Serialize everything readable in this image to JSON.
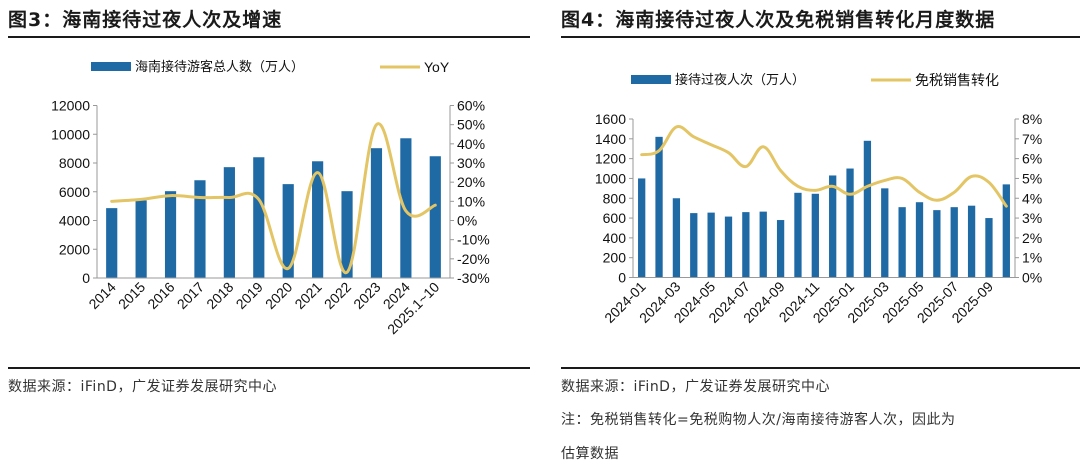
{
  "figures": [
    {
      "title": "图3：海南接待过夜人次及增速",
      "source": "数据来源：iFinD，广发证券发展研究中心"
    },
    {
      "title": "图4：海南接待过夜人次及免税销售转化月度数据",
      "source": "数据来源：iFinD，广发证券发展研究中心",
      "note_line1": "注：免税销售转化=免税购物人次/海南接待游客人次，因此为",
      "note_line2": "估算数据"
    }
  ],
  "colors": {
    "bar": "#1f6aa5",
    "line": "#e3c565",
    "axis": "#999999"
  },
  "chart_data": [
    {
      "type": "bar",
      "title": "图3：海南接待过夜人次及增速",
      "categories": [
        "2014",
        "2015",
        "2016",
        "2017",
        "2018",
        "2019",
        "2020",
        "2021",
        "2022",
        "2023",
        "2024",
        "2025.1~10"
      ],
      "series": [
        {
          "name": "海南接待游客总人数（万人）",
          "type": "bar",
          "axis": "left",
          "values": [
            4860,
            5400,
            6040,
            6800,
            7710,
            8400,
            6530,
            8120,
            6040,
            9030,
            9720,
            8470
          ]
        },
        {
          "name": "YoY",
          "type": "line",
          "axis": "right",
          "values": [
            10,
            11,
            13,
            12,
            12,
            11,
            -25,
            25,
            -27,
            50,
            5,
            8
          ]
        }
      ],
      "y_left": {
        "min": 0,
        "max": 12000,
        "ticks": [
          "0",
          "2000",
          "4000",
          "6000",
          "8000",
          "10000",
          "12000"
        ]
      },
      "y_right": {
        "min": -30,
        "max": 60,
        "ticks": [
          "-30%",
          "-20%",
          "-10%",
          "0%",
          "10%",
          "20%",
          "30%",
          "40%",
          "50%",
          "60%"
        ]
      },
      "legend": [
        "海南接待游客总人数（万人）",
        "YoY"
      ],
      "legend_position": "top",
      "grid": false
    },
    {
      "type": "bar",
      "title": "图4：海南接待过夜人次及免税销售转化月度数据",
      "categories": [
        "2024-01",
        "2024-02",
        "2024-03",
        "2024-04",
        "2024-05",
        "2024-06",
        "2024-07",
        "2024-08",
        "2024-09",
        "2024-10",
        "2024-11",
        "2024-12",
        "2025-01",
        "2025-02",
        "2025-03",
        "2025-04",
        "2025-05",
        "2025-06",
        "2025-07",
        "2025-08",
        "2025-09",
        "2025-10"
      ],
      "tick_labels": [
        "2024-01",
        "2024-03",
        "2024-05",
        "2024-07",
        "2024-09",
        "2024-11",
        "2025-01",
        "2025-03",
        "2025-05",
        "2025-07",
        "2025-09"
      ],
      "series": [
        {
          "name": "接待过夜人次（万人）",
          "type": "bar",
          "axis": "left",
          "values": [
            1000,
            1420,
            800,
            650,
            655,
            615,
            660,
            665,
            580,
            855,
            845,
            1030,
            1100,
            1380,
            900,
            710,
            760,
            680,
            710,
            725,
            600,
            940
          ]
        },
        {
          "name": "免税销售转化",
          "type": "line",
          "axis": "right",
          "values": [
            6.2,
            6.4,
            7.6,
            7.1,
            6.7,
            6.3,
            5.6,
            6.6,
            5.4,
            4.6,
            4.4,
            4.6,
            4.2,
            4.6,
            4.9,
            5.0,
            4.3,
            3.9,
            4.3,
            5.1,
            4.8,
            3.6
          ]
        }
      ],
      "y_left": {
        "min": 0,
        "max": 1600,
        "ticks": [
          "0",
          "200",
          "400",
          "600",
          "800",
          "1000",
          "1200",
          "1400",
          "1600"
        ]
      },
      "y_right": {
        "min": 0,
        "max": 8,
        "ticks": [
          "0%",
          "1%",
          "2%",
          "3%",
          "4%",
          "5%",
          "6%",
          "7%",
          "8%"
        ]
      },
      "legend": [
        "接待过夜人次（万人）",
        "免税销售转化"
      ],
      "legend_position": "top",
      "grid": false
    }
  ]
}
